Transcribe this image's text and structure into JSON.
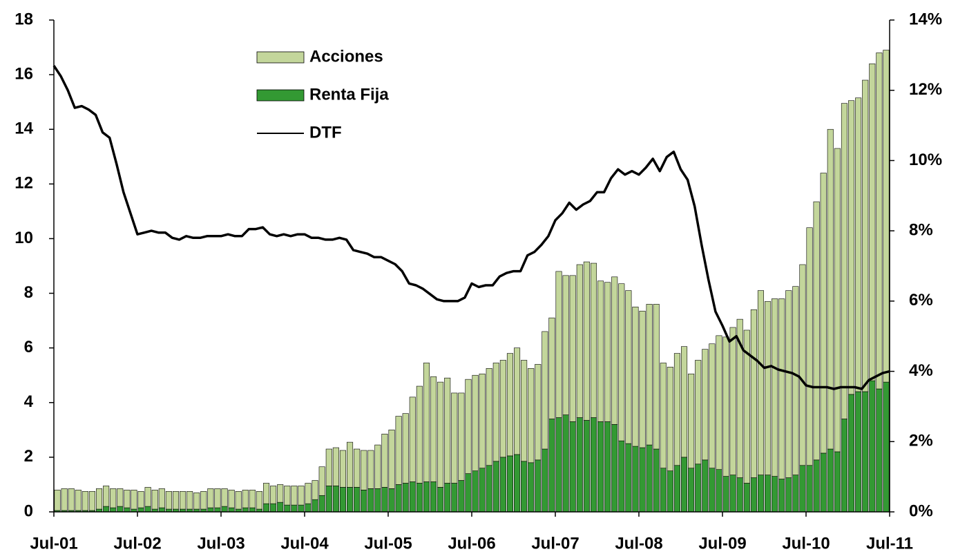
{
  "chart_data": {
    "type": "bar",
    "stacked": true,
    "categories": [
      "Jul-01",
      null,
      null,
      null,
      null,
      null,
      null,
      null,
      null,
      null,
      null,
      null,
      "Jul-02",
      null,
      null,
      null,
      null,
      null,
      null,
      null,
      null,
      null,
      null,
      null,
      "Jul-03",
      null,
      null,
      null,
      null,
      null,
      null,
      null,
      null,
      null,
      null,
      null,
      "Jul-04",
      null,
      null,
      null,
      null,
      null,
      null,
      null,
      null,
      null,
      null,
      null,
      "Jul-05",
      null,
      null,
      null,
      null,
      null,
      null,
      null,
      null,
      null,
      null,
      null,
      "Jul-06",
      null,
      null,
      null,
      null,
      null,
      null,
      null,
      null,
      null,
      null,
      null,
      "Jul-07",
      null,
      null,
      null,
      null,
      null,
      null,
      null,
      null,
      null,
      null,
      null,
      "Jul-08",
      null,
      null,
      null,
      null,
      null,
      null,
      null,
      null,
      null,
      null,
      null,
      "Jul-09",
      null,
      null,
      null,
      null,
      null,
      null,
      null,
      null,
      null,
      null,
      null,
      "Jul-10",
      null,
      null,
      null,
      null,
      null,
      null,
      null,
      null,
      null,
      null,
      null,
      "Jul-11"
    ],
    "series": [
      {
        "name": "Acciones",
        "color": "#c3d69b",
        "values": [
          0.75,
          0.8,
          0.8,
          0.75,
          0.7,
          0.7,
          0.75,
          0.75,
          0.7,
          0.65,
          0.65,
          0.7,
          0.6,
          0.7,
          0.7,
          0.7,
          0.65,
          0.65,
          0.65,
          0.65,
          0.6,
          0.65,
          0.7,
          0.7,
          0.65,
          0.65,
          0.65,
          0.65,
          0.65,
          0.65,
          0.75,
          0.65,
          0.65,
          0.7,
          0.7,
          0.7,
          0.75,
          0.7,
          1.05,
          1.35,
          1.4,
          1.35,
          1.65,
          1.4,
          1.45,
          1.4,
          1.6,
          1.95,
          2.15,
          2.5,
          2.55,
          3.1,
          3.55,
          4.35,
          3.85,
          3.85,
          3.85,
          3.3,
          3.2,
          3.45,
          3.5,
          3.45,
          3.55,
          3.6,
          3.55,
          3.75,
          3.9,
          3.7,
          3.45,
          3.5,
          4.3,
          3.7,
          5.35,
          5.1,
          5.35,
          5.6,
          5.8,
          5.65,
          5.15,
          5.1,
          5.4,
          5.75,
          5.6,
          5.1,
          5.0,
          5.15,
          5.3,
          3.85,
          3.8,
          4.1,
          4.05,
          3.45,
          3.8,
          4.05,
          4.55,
          4.9,
          5.1,
          5.4,
          5.8,
          5.6,
          6.15,
          6.75,
          6.35,
          6.5,
          6.6,
          6.85,
          6.9,
          7.35,
          8.7,
          9.45,
          10.25,
          11.7,
          11.1,
          11.55,
          10.75,
          10.75,
          11.4,
          11.6,
          12.3,
          12.15,
          null
        ]
      },
      {
        "name": "Renta Fija",
        "color": "#339933",
        "values": [
          0.05,
          0.05,
          0.05,
          0.05,
          0.05,
          0.05,
          0.1,
          0.2,
          0.15,
          0.2,
          0.15,
          0.1,
          0.15,
          0.2,
          0.1,
          0.15,
          0.1,
          0.1,
          0.1,
          0.1,
          0.1,
          0.1,
          0.15,
          0.15,
          0.2,
          0.15,
          0.1,
          0.15,
          0.15,
          0.1,
          0.3,
          0.3,
          0.35,
          0.25,
          0.25,
          0.25,
          0.3,
          0.45,
          0.6,
          0.95,
          0.95,
          0.9,
          0.9,
          0.9,
          0.8,
          0.85,
          0.85,
          0.9,
          0.85,
          1.0,
          1.05,
          1.1,
          1.05,
          1.1,
          1.1,
          0.9,
          1.05,
          1.05,
          1.15,
          1.4,
          1.5,
          1.6,
          1.7,
          1.85,
          2.0,
          2.05,
          2.1,
          1.85,
          1.8,
          1.9,
          2.3,
          3.4,
          3.45,
          3.55,
          3.3,
          3.45,
          3.35,
          3.45,
          3.3,
          3.3,
          3.2,
          2.6,
          2.5,
          2.4,
          2.35,
          2.45,
          2.3,
          1.6,
          1.5,
          1.7,
          2.0,
          1.6,
          1.75,
          1.9,
          1.6,
          1.55,
          1.3,
          1.35,
          1.25,
          1.05,
          1.25,
          1.35,
          1.35,
          1.3,
          1.2,
          1.25,
          1.35,
          1.7,
          1.7,
          1.9,
          2.15,
          2.3,
          2.2,
          3.4,
          4.3,
          4.4,
          4.4,
          4.8,
          4.5,
          4.75,
          null
        ]
      },
      {
        "name": "DTF",
        "color": "#000000",
        "axis": "y2",
        "values": [
          12.7,
          12.4,
          12.0,
          11.5,
          11.55,
          11.45,
          11.3,
          10.8,
          10.65,
          9.9,
          9.1,
          8.5,
          7.9,
          7.95,
          8.0,
          7.95,
          7.95,
          7.8,
          7.75,
          7.85,
          7.8,
          7.8,
          7.85,
          7.85,
          7.85,
          7.9,
          7.85,
          7.85,
          8.05,
          8.05,
          8.1,
          7.9,
          7.85,
          7.9,
          7.85,
          7.9,
          7.9,
          7.8,
          7.8,
          7.75,
          7.75,
          7.8,
          7.75,
          7.45,
          7.4,
          7.35,
          7.25,
          7.25,
          7.15,
          7.05,
          6.85,
          6.5,
          6.45,
          6.35,
          6.2,
          6.05,
          6.0,
          6.0,
          6.0,
          6.1,
          6.5,
          6.4,
          6.45,
          6.45,
          6.7,
          6.8,
          6.85,
          6.85,
          7.3,
          7.4,
          7.6,
          7.85,
          8.3,
          8.5,
          8.8,
          8.6,
          8.75,
          8.85,
          9.1,
          9.1,
          9.5,
          9.75,
          9.6,
          9.7,
          9.6,
          9.8,
          10.05,
          9.7,
          10.1,
          10.25,
          9.75,
          9.45,
          8.7,
          7.6,
          6.6,
          5.7,
          5.3,
          4.85,
          5.0,
          4.6,
          4.45,
          4.3,
          4.1,
          4.15,
          4.05,
          4.0,
          3.95,
          3.85,
          3.6,
          3.55,
          3.55,
          3.55,
          3.5,
          3.55,
          3.55,
          3.55,
          3.5,
          3.75,
          3.85,
          3.95,
          4.0
        ]
      }
    ],
    "ylim": [
      0,
      18
    ],
    "yticks": [
      0,
      2,
      4,
      6,
      8,
      10,
      12,
      14,
      16,
      18
    ],
    "y2lim": [
      0,
      14
    ],
    "y2ticks": [
      {
        "value": 0,
        "label": "0%"
      },
      {
        "value": 2,
        "label": "2%"
      },
      {
        "value": 4,
        "label": "4%"
      },
      {
        "value": 6,
        "label": "6%"
      },
      {
        "value": 8,
        "label": "8%"
      },
      {
        "value": 10,
        "label": "10%"
      },
      {
        "value": 12,
        "label": "12%"
      },
      {
        "value": 14,
        "label": "14%"
      }
    ],
    "legend": "upper left"
  }
}
